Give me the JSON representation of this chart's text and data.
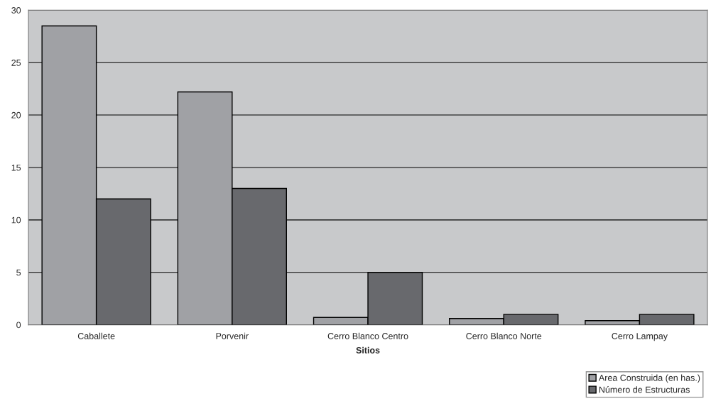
{
  "chart_data": {
    "type": "bar",
    "xlabel": "Sitios",
    "categories": [
      "Caballete",
      "Porvenir",
      "Cerro Blanco Centro",
      "Cerro Blanco Norte",
      "Cerro Lampay"
    ],
    "series": [
      {
        "name": "Area Construida (en has.)",
        "color": "#a0a1a5",
        "values": [
          28.5,
          22.2,
          0.7,
          0.6,
          0.4
        ]
      },
      {
        "name": "Número de Estructuras",
        "color": "#68696d",
        "values": [
          12,
          13,
          5,
          1,
          1
        ]
      }
    ],
    "ylim": [
      0,
      30
    ],
    "yticks": [
      0,
      5,
      10,
      15,
      20,
      25,
      30
    ],
    "grid": "y",
    "legend": "bottom right"
  }
}
